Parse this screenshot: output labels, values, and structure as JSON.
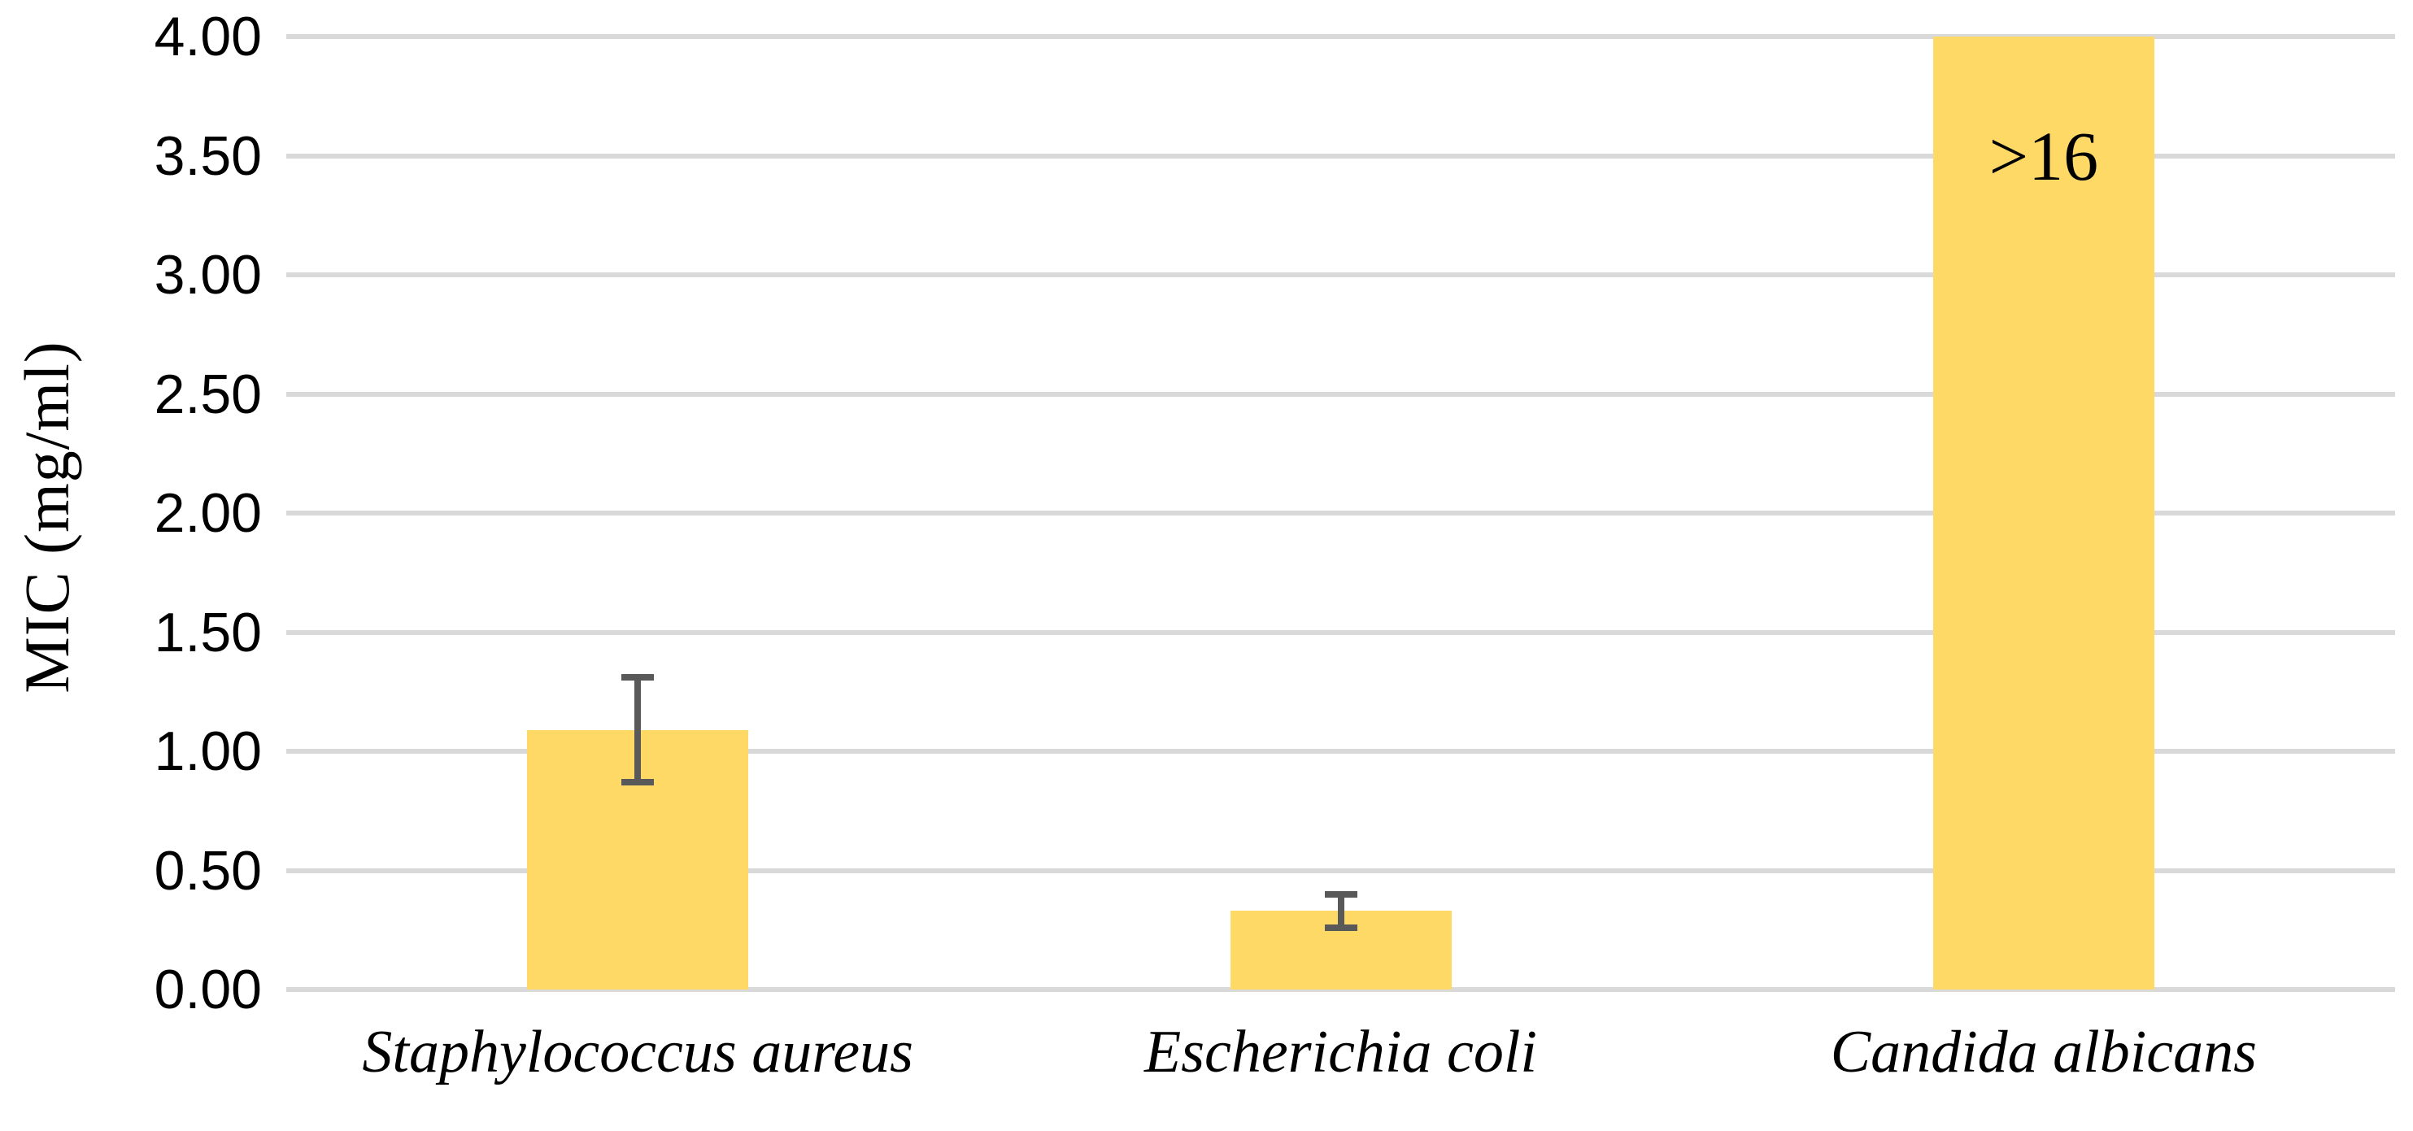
{
  "chart_data": {
    "type": "bar",
    "title": "",
    "xlabel": "",
    "ylabel": "MIC (mg/ml)",
    "categories": [
      "Staphylococcus aureus",
      "Escherichia coli",
      "Candida albicans"
    ],
    "values": [
      1.09,
      0.33,
      4.0
    ],
    "error_bars": [
      {
        "low": 0.87,
        "high": 1.31
      },
      {
        "low": 0.26,
        "high": 0.4
      },
      null
    ],
    "annotations": [
      {
        "category_index": 2,
        "text": ">16",
        "y_value": 3.5
      }
    ],
    "ylim": [
      0,
      4
    ],
    "ytick_step": 0.5,
    "ytick_labels": [
      "0.00",
      "0.50",
      "1.00",
      "1.50",
      "2.00",
      "2.50",
      "3.00",
      "3.50",
      "4.00"
    ],
    "grid": true,
    "legend": false,
    "category_style": "italic",
    "colors": {
      "bar": "#FFD966",
      "error_bar": "#595959",
      "gridline": "#D9D9D9",
      "text": "#000000",
      "background": "#FFFFFF"
    }
  }
}
